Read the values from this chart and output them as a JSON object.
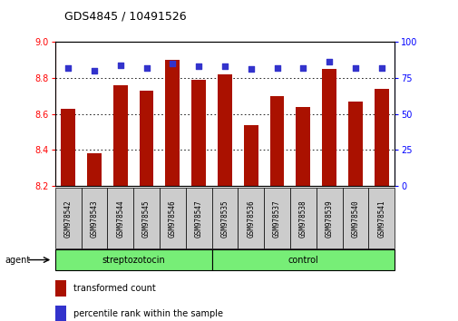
{
  "title": "GDS4845 / 10491526",
  "samples": [
    "GSM978542",
    "GSM978543",
    "GSM978544",
    "GSM978545",
    "GSM978546",
    "GSM978547",
    "GSM978535",
    "GSM978536",
    "GSM978537",
    "GSM978538",
    "GSM978539",
    "GSM978540",
    "GSM978541"
  ],
  "bar_values": [
    8.63,
    8.38,
    8.76,
    8.73,
    8.9,
    8.79,
    8.82,
    8.54,
    8.7,
    8.64,
    8.85,
    8.67,
    8.74
  ],
  "percentile_values": [
    82,
    80,
    84,
    82,
    85,
    83,
    83,
    81,
    82,
    82,
    86,
    82,
    82
  ],
  "bar_bottom": 8.2,
  "ylim_left": [
    8.2,
    9.0
  ],
  "ylim_right": [
    0,
    100
  ],
  "yticks_left": [
    8.2,
    8.4,
    8.6,
    8.8,
    9.0
  ],
  "yticks_right": [
    0,
    25,
    50,
    75,
    100
  ],
  "bar_color": "#AA1100",
  "dot_color": "#3333CC",
  "group1_label": "streptozotocin",
  "group2_label": "control",
  "group1_color": "#77EE77",
  "group2_color": "#77EE77",
  "group1_count": 6,
  "group2_count": 7,
  "agent_label": "agent",
  "legend_bar_label": "transformed count",
  "legend_dot_label": "percentile rank within the sample",
  "tick_label_bg": "#cccccc"
}
